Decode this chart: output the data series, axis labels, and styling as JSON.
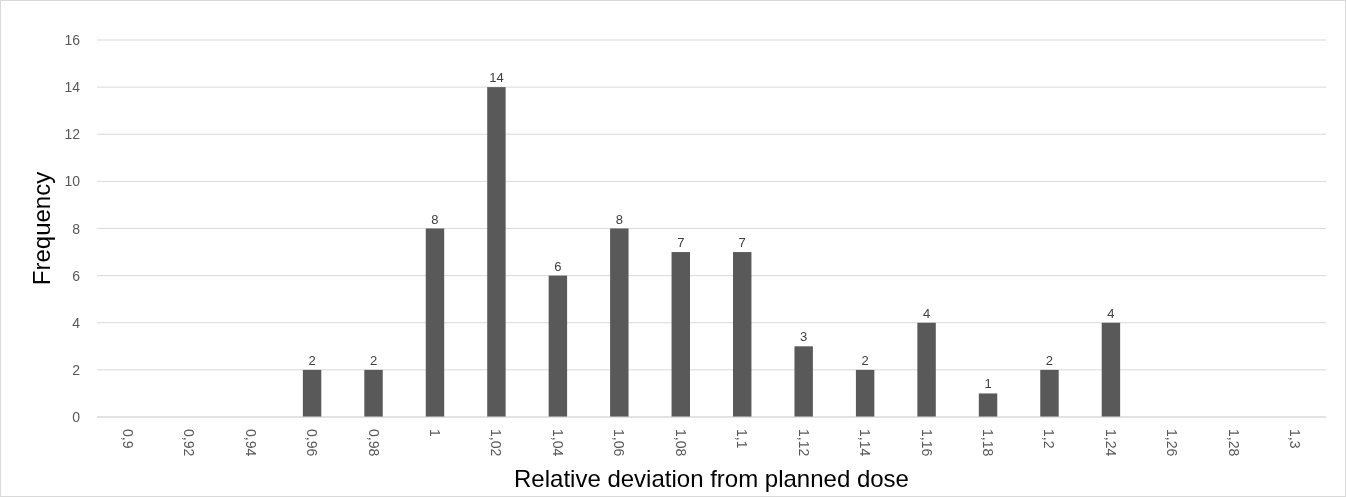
{
  "chart_data": {
    "type": "bar",
    "xlabel": "Relative deviation from planned dose",
    "ylabel": "Frequency",
    "categories": [
      "0,9",
      "0,92",
      "0,94",
      "0,96",
      "0,98",
      "1",
      "1,02",
      "1,04",
      "1,06",
      "1,08",
      "1,1",
      "1,12",
      "1,14",
      "1,16",
      "1,18",
      "1,2",
      "1,24",
      "1,26",
      "1,28",
      "1,3"
    ],
    "values": [
      0,
      0,
      0,
      2,
      2,
      8,
      14,
      6,
      8,
      7,
      7,
      3,
      2,
      4,
      1,
      2,
      4,
      0,
      0,
      0
    ],
    "value_labels": [
      null,
      null,
      null,
      "2",
      "2",
      "8",
      "14",
      "6",
      "8",
      "7",
      "7",
      "3",
      "2",
      "4",
      "1",
      "2",
      "4",
      null,
      null,
      null
    ],
    "color": "#595959",
    "ylim": [
      0,
      16
    ],
    "yticks": [
      0,
      2,
      4,
      6,
      8,
      10,
      12,
      14,
      16
    ],
    "grid": "y"
  }
}
